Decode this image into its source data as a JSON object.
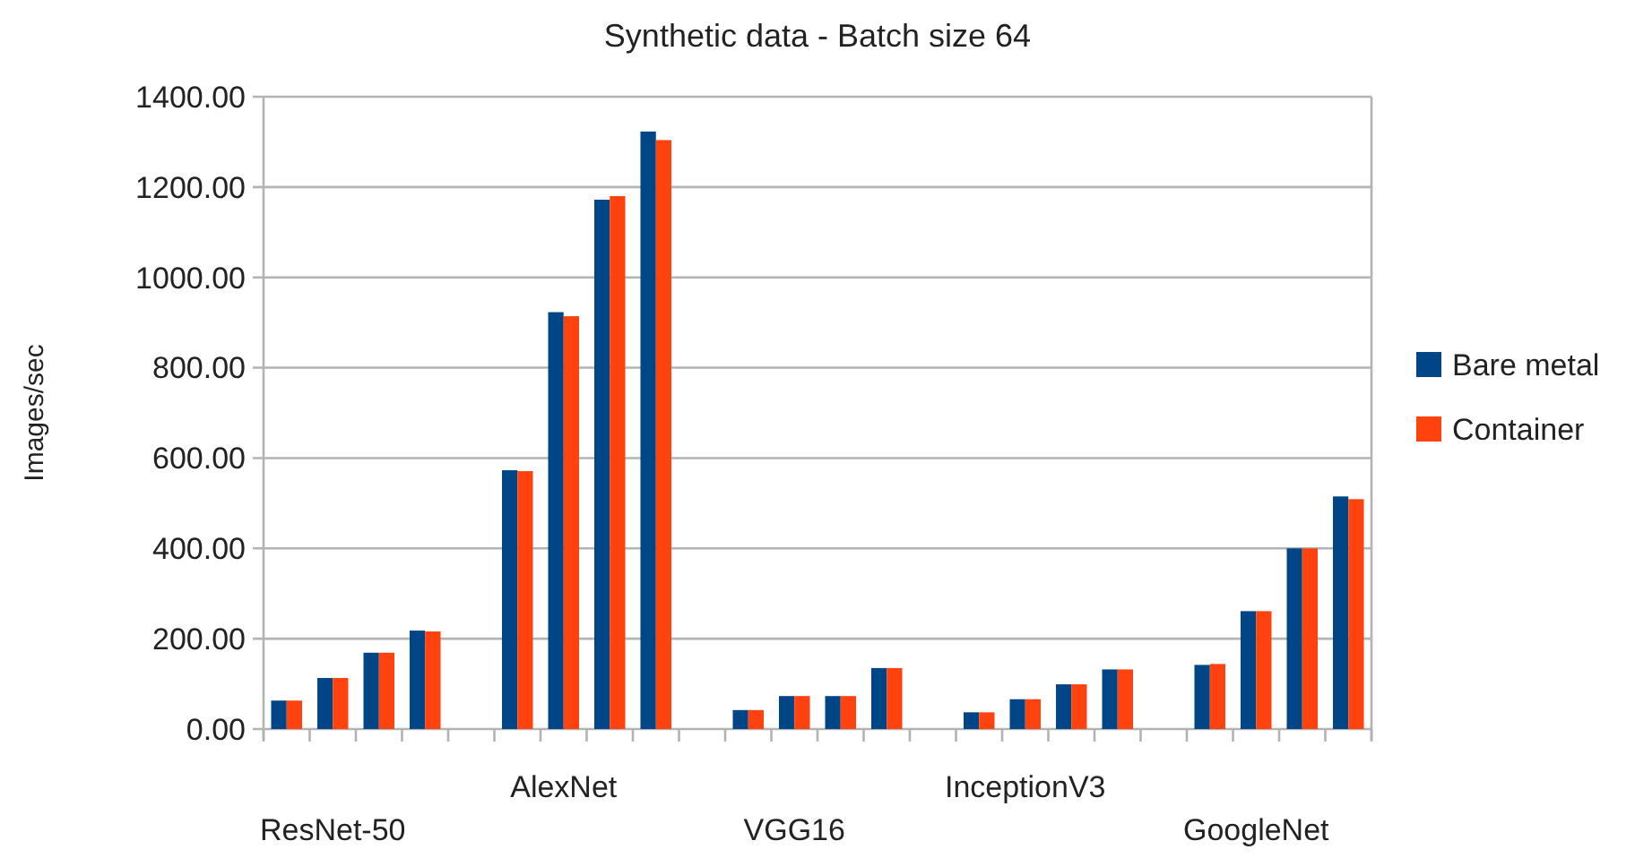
{
  "chart_data": {
    "type": "bar",
    "title": "Synthetic data - Batch size 64",
    "ylabel": "Images/sec",
    "categories": [
      null,
      "ResNet-50",
      null,
      null,
      null,
      null,
      "AlexNet",
      null,
      null,
      null,
      null,
      "VGG16",
      null,
      null,
      null,
      null,
      "InceptionV3",
      null,
      null,
      null,
      null,
      "GoogleNet",
      null,
      null
    ],
    "series": [
      {
        "name": "Bare metal",
        "color": "#004586",
        "values": [
          63,
          113,
          169,
          218,
          null,
          573,
          923,
          1172,
          1323,
          null,
          42,
          73,
          73,
          135,
          null,
          37,
          66,
          99,
          132,
          null,
          142,
          261,
          400,
          515
        ]
      },
      {
        "name": "Container",
        "color": "#ff420e",
        "values": [
          63,
          113,
          169,
          216,
          null,
          571,
          914,
          1180,
          1304,
          null,
          42,
          73,
          73,
          135,
          null,
          37,
          66,
          99,
          132,
          null,
          144,
          261,
          400,
          509
        ]
      }
    ],
    "ylim": [
      0,
      1400
    ],
    "yticks": [
      {
        "value": 0,
        "label": "0.00"
      },
      {
        "value": 200,
        "label": "200.00"
      },
      {
        "value": 400,
        "label": "400.00"
      },
      {
        "value": 600,
        "label": "600.00"
      },
      {
        "value": 800,
        "label": "800.00"
      },
      {
        "value": 1000,
        "label": "1000.00"
      },
      {
        "value": 1200,
        "label": "1200.00"
      },
      {
        "value": 1400,
        "label": "1400.00"
      }
    ],
    "grid": "y",
    "legend": "right"
  }
}
